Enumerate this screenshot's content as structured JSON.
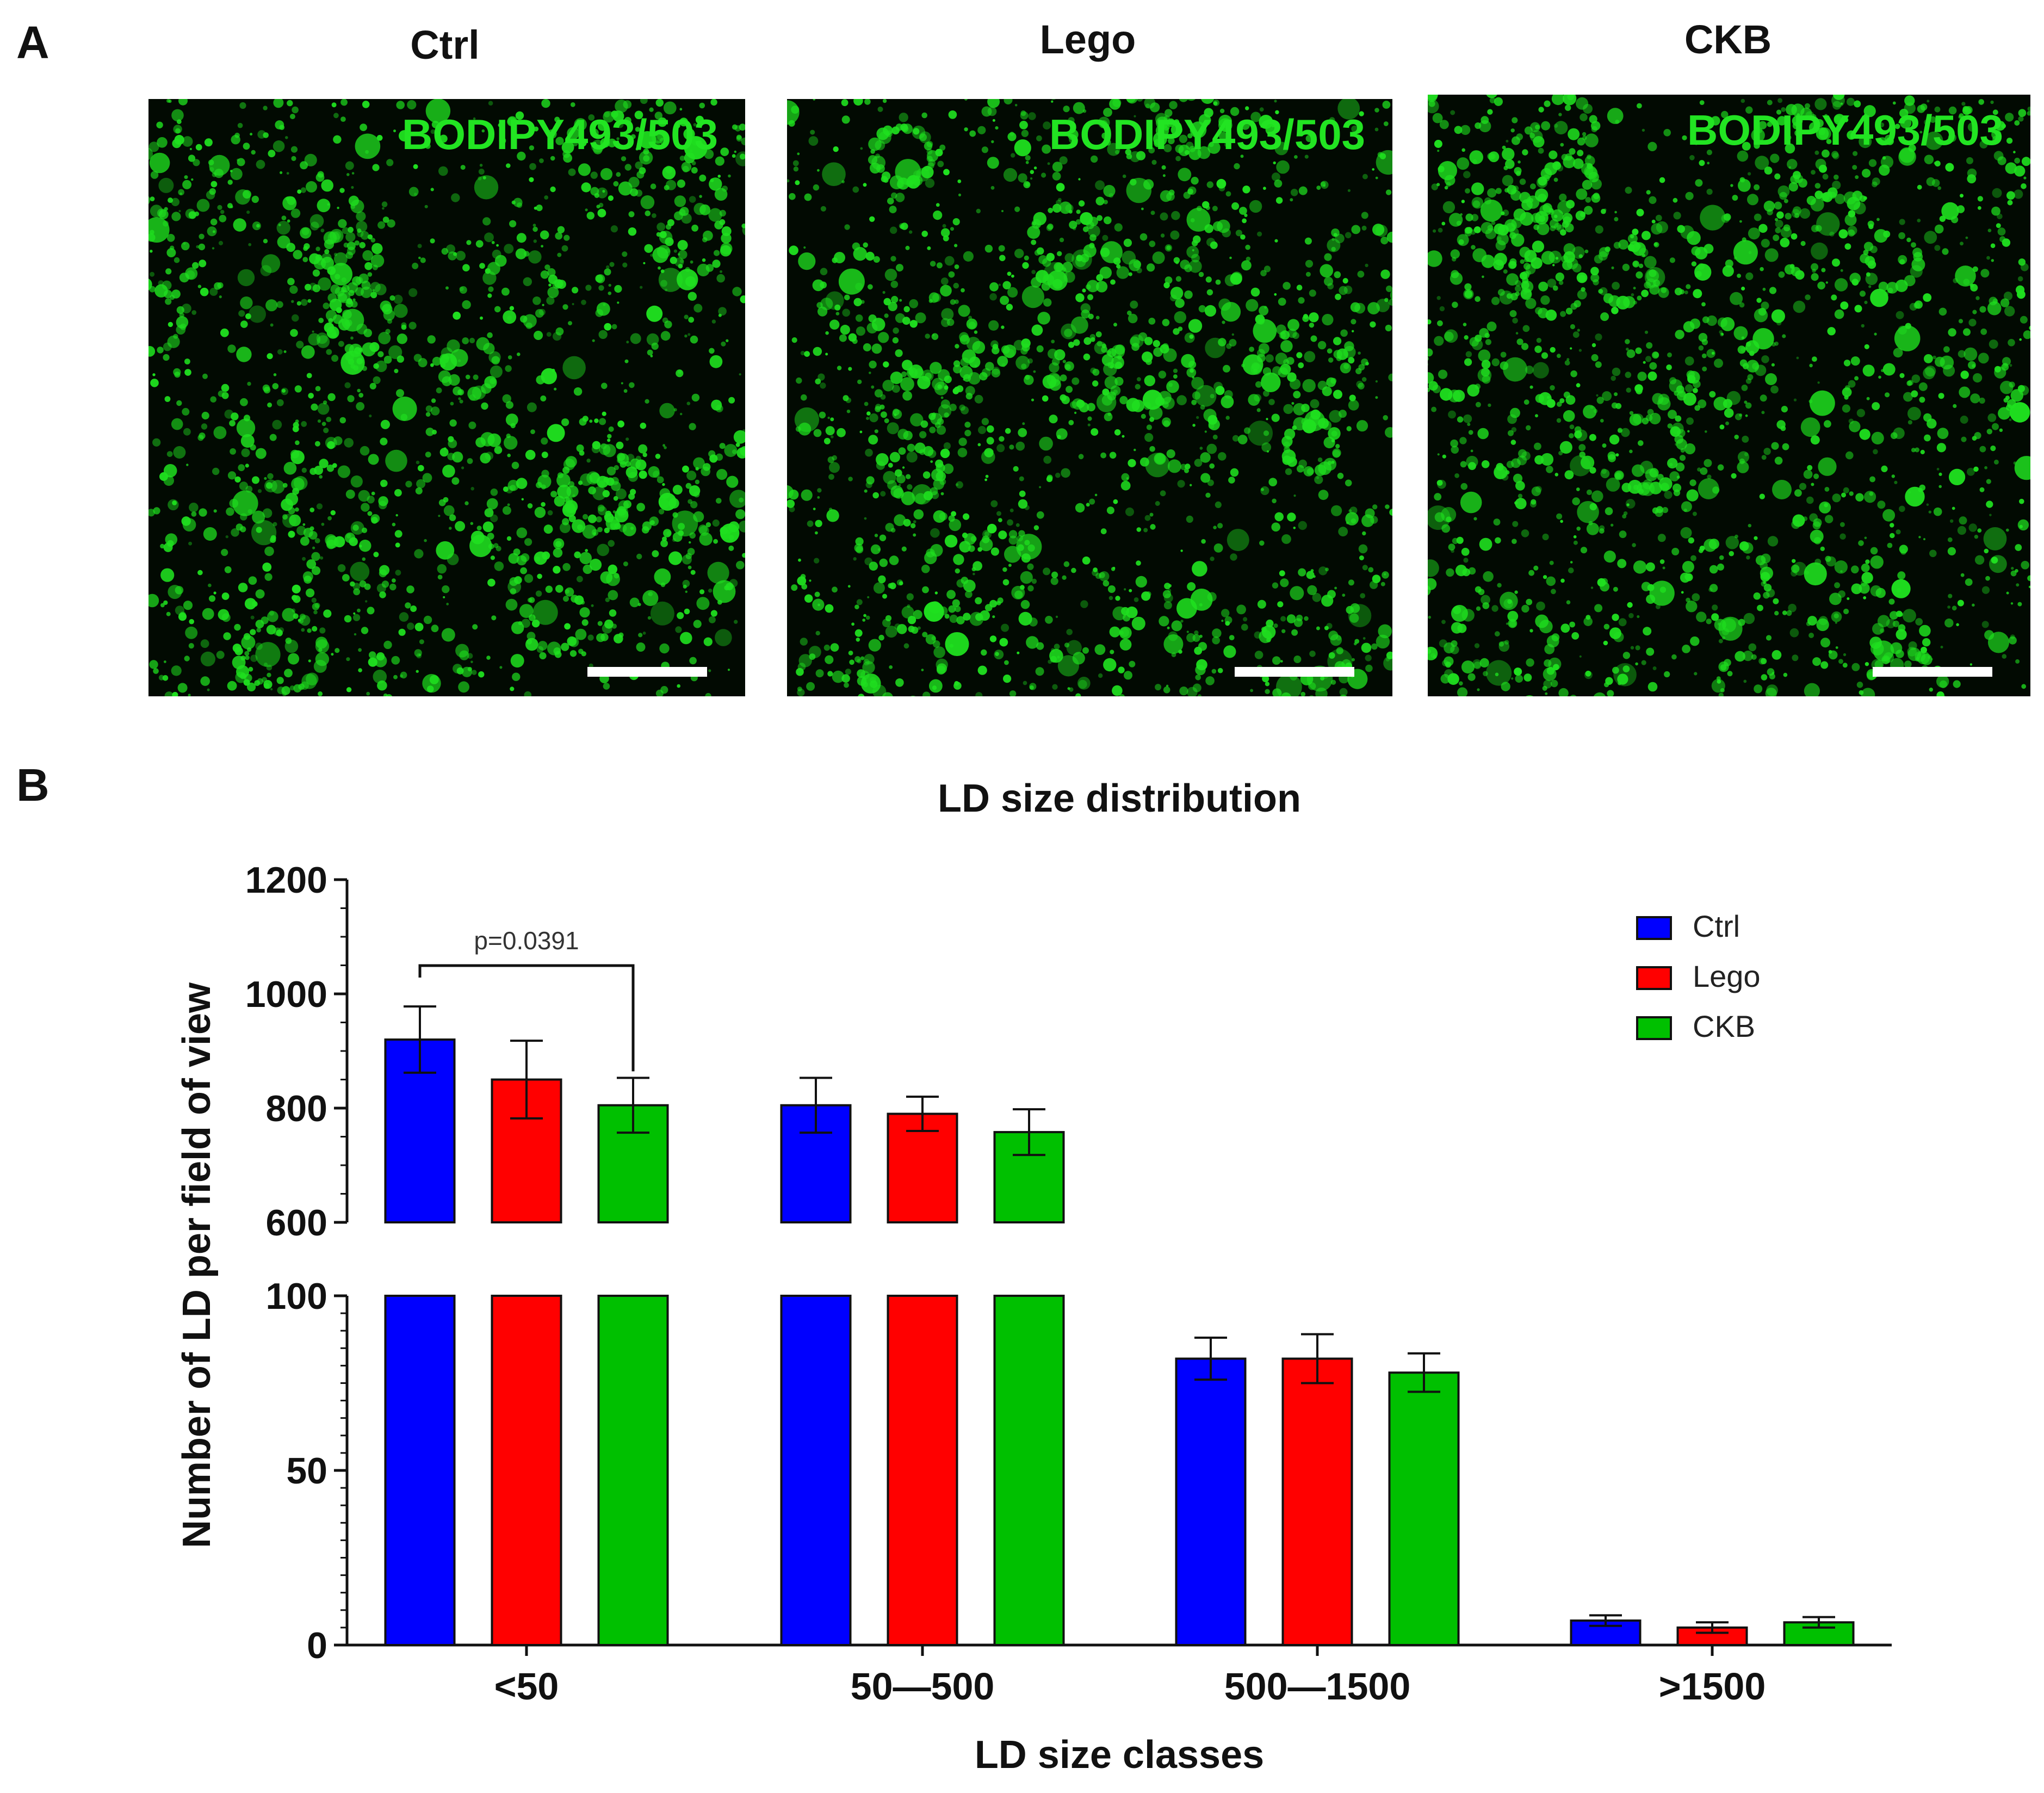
{
  "panel_a": {
    "letter": "A",
    "images": [
      {
        "title": "Ctrl",
        "stain": "BODIPY493/503"
      },
      {
        "title": "Lego",
        "stain": "BODIPY493/503"
      },
      {
        "title": "CKB",
        "stain": "BODIPY493/503"
      }
    ],
    "fluorescence_color": "#1fe01f"
  },
  "panel_b": {
    "letter": "B"
  },
  "chart_data": {
    "type": "bar",
    "title": "LD size distribution",
    "xlabel": "LD size classes",
    "ylabel": "Number of LD per field of view",
    "categories": [
      "<50",
      "50—500",
      "500—1500",
      ">1500"
    ],
    "series": [
      {
        "name": "Ctrl",
        "color": "#0000ff",
        "values": [
          920,
          805,
          82,
          7
        ],
        "errors": [
          58,
          48,
          6,
          1.5
        ]
      },
      {
        "name": "Lego",
        "color": "#ff0000",
        "values": [
          850,
          790,
          82,
          5
        ],
        "errors": [
          68,
          30,
          7,
          1.5
        ]
      },
      {
        "name": "CKB",
        "color": "#00c000",
        "values": [
          805,
          758,
          78,
          6.5
        ],
        "errors": [
          48,
          40,
          5.5,
          1.5
        ]
      }
    ],
    "y_axis_broken": true,
    "y_segments": [
      {
        "range": [
          0,
          100
        ],
        "ticks": [
          0,
          50,
          100
        ]
      },
      {
        "range": [
          600,
          1200
        ],
        "ticks": [
          600,
          800,
          1000,
          1200
        ]
      }
    ],
    "grid": false,
    "legend_placement": "top-right",
    "annotation": {
      "text": "p=0.0391",
      "between": [
        "Ctrl",
        "CKB"
      ],
      "category": "<50"
    }
  }
}
